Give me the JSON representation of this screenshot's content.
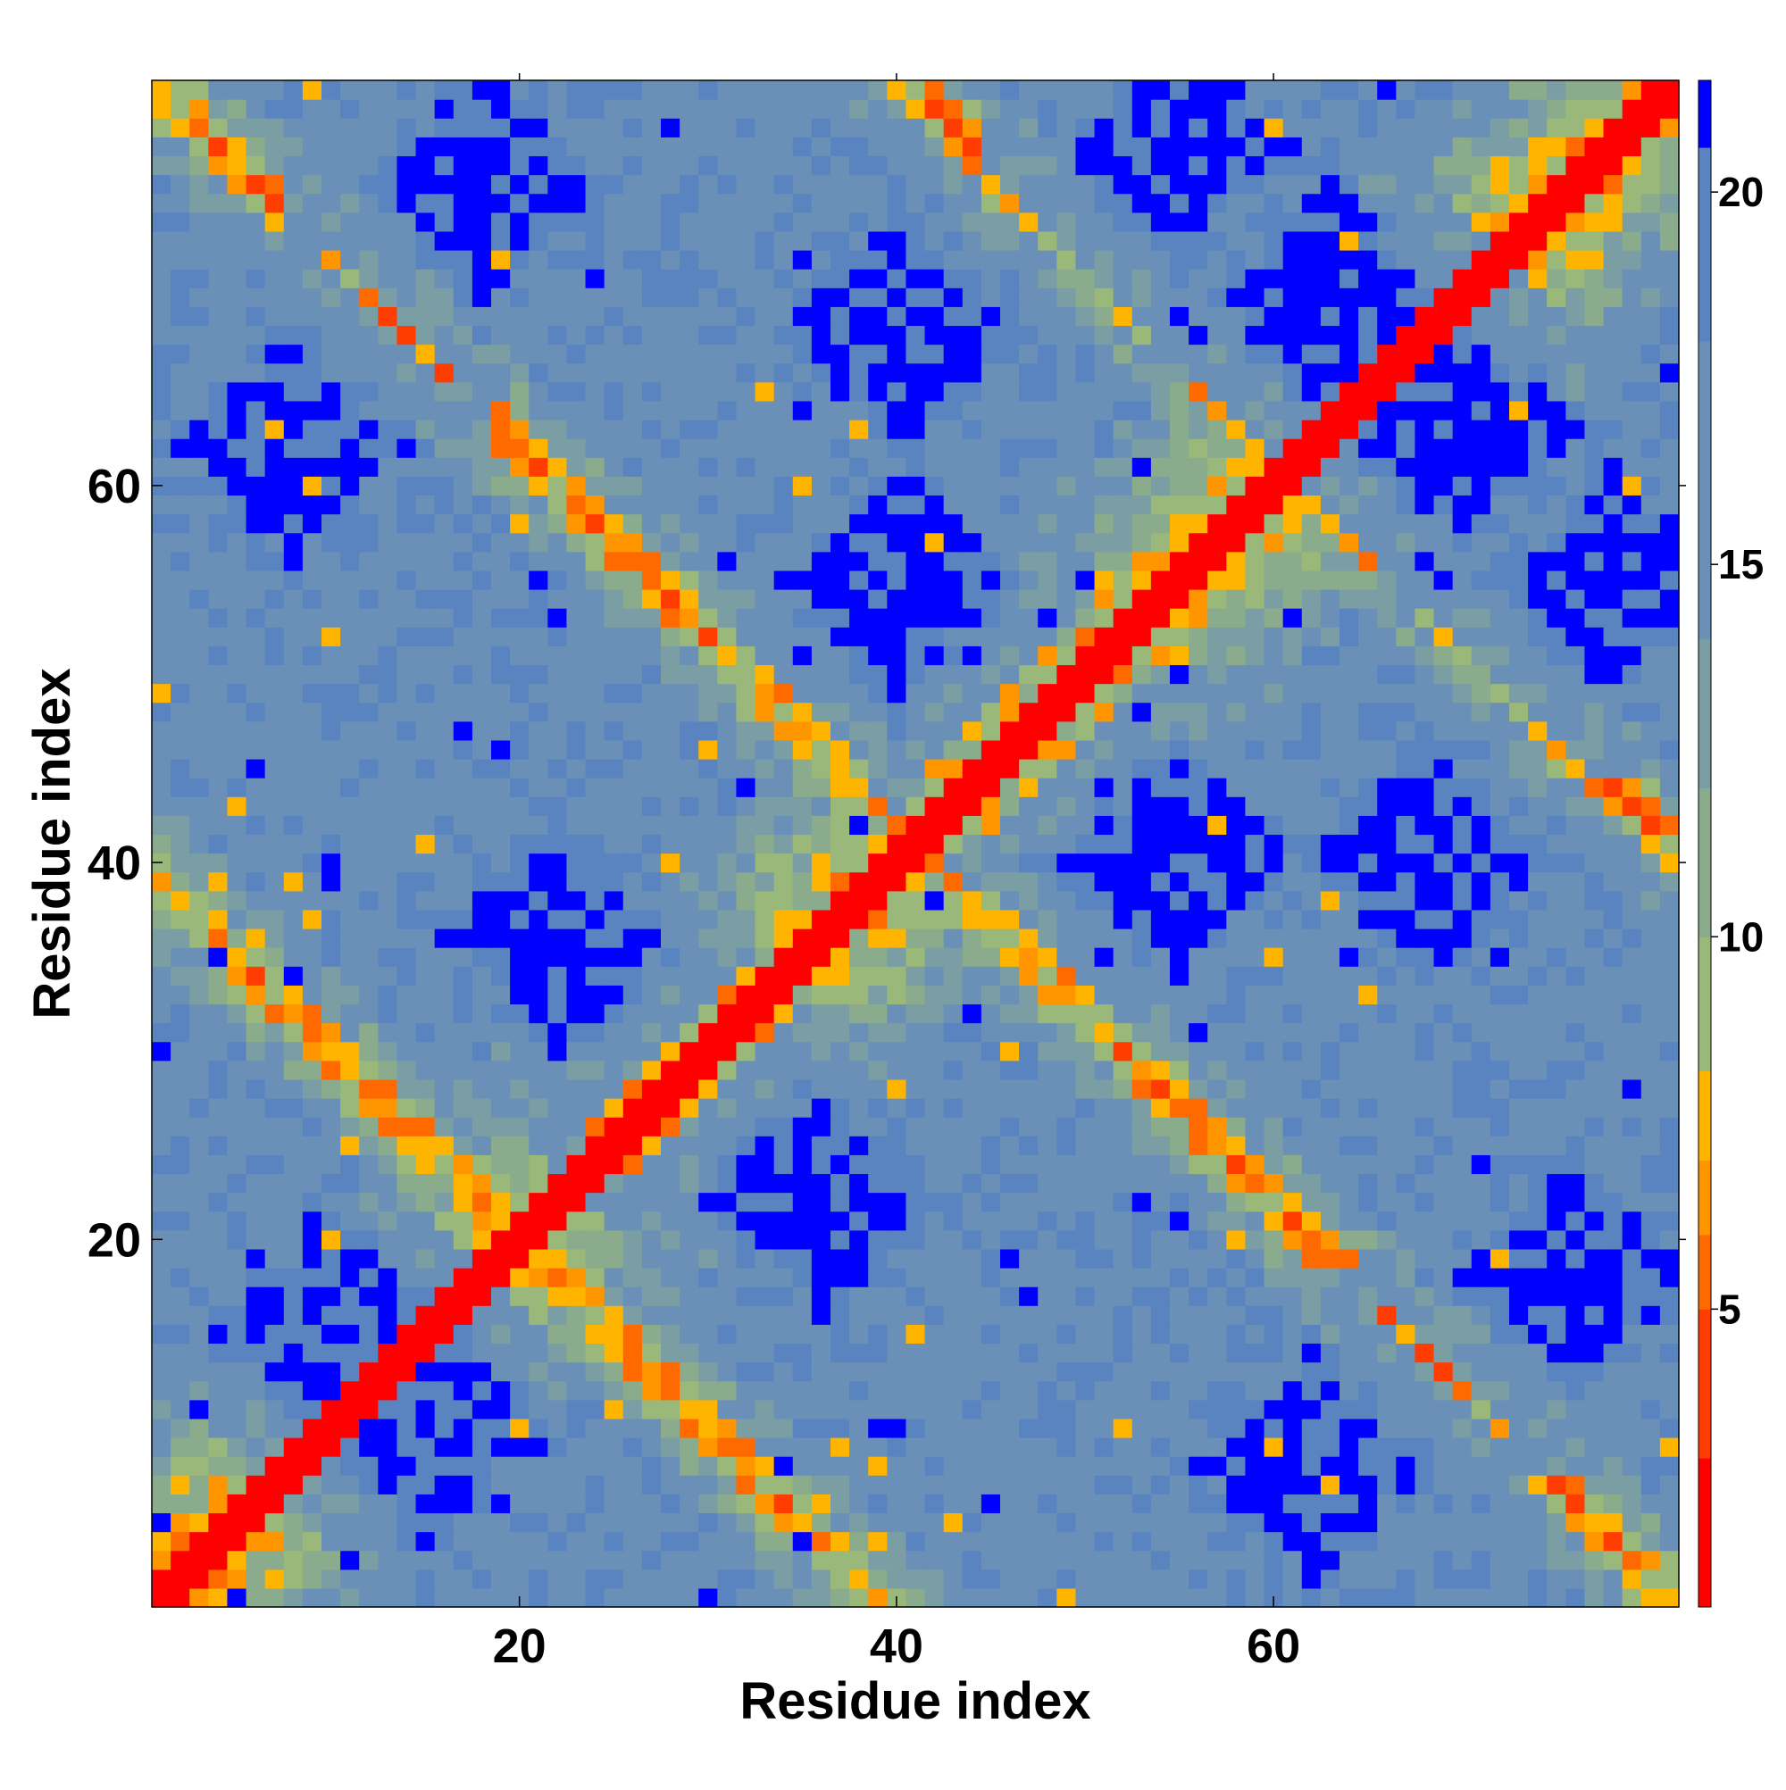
{
  "chart_data": {
    "type": "heatmap",
    "title": "",
    "xlabel": "Residue index",
    "ylabel": "Residue index",
    "n": 81,
    "x_range": [
      1,
      81
    ],
    "y_range": [
      1,
      81
    ],
    "x_ticks": [
      20,
      40,
      60
    ],
    "y_ticks": [
      20,
      40,
      60
    ],
    "colorbar": {
      "ticks": [
        5,
        10,
        15,
        20
      ],
      "range": [
        1,
        21.5
      ],
      "colors": [
        "#ff0000",
        "#ff3d00",
        "#ff6a00",
        "#ff9600",
        "#ffb400",
        "#9ab87a",
        "#8aab8c",
        "#7a9ea4",
        "#6a90b8",
        "#5a84c0",
        "#0000ff"
      ],
      "stops": [
        1,
        3,
        5,
        6,
        7,
        8.2,
        10,
        12,
        14,
        18,
        20.6,
        21.5
      ]
    },
    "pattern": {
      "description_of_values": "distance-like map symmetric about main diagonal",
      "diagonal_value": 1.5,
      "far_value": 21,
      "off_diagonal_bands": [
        {
          "anti_diagonal_sum": 40,
          "value": 6.5
        },
        {
          "anti_diagonal_sum": 82,
          "value": 6.5
        },
        {
          "anti_diagonal_sum": 122,
          "value": 6.5
        }
      ],
      "blue_blob_centers": [
        [
          18,
          5
        ],
        [
          45,
          6
        ],
        [
          63,
          6
        ],
        [
          75,
          13
        ],
        [
          10,
          15
        ],
        [
          40,
          18
        ],
        [
          75,
          24
        ],
        [
          22,
          36
        ],
        [
          58,
          36
        ],
        [
          40,
          55
        ],
        [
          75,
          55
        ],
        [
          8,
          62
        ],
        [
          40,
          68
        ],
        [
          63,
          70
        ],
        [
          18,
          76
        ],
        [
          55,
          78
        ]
      ]
    }
  }
}
